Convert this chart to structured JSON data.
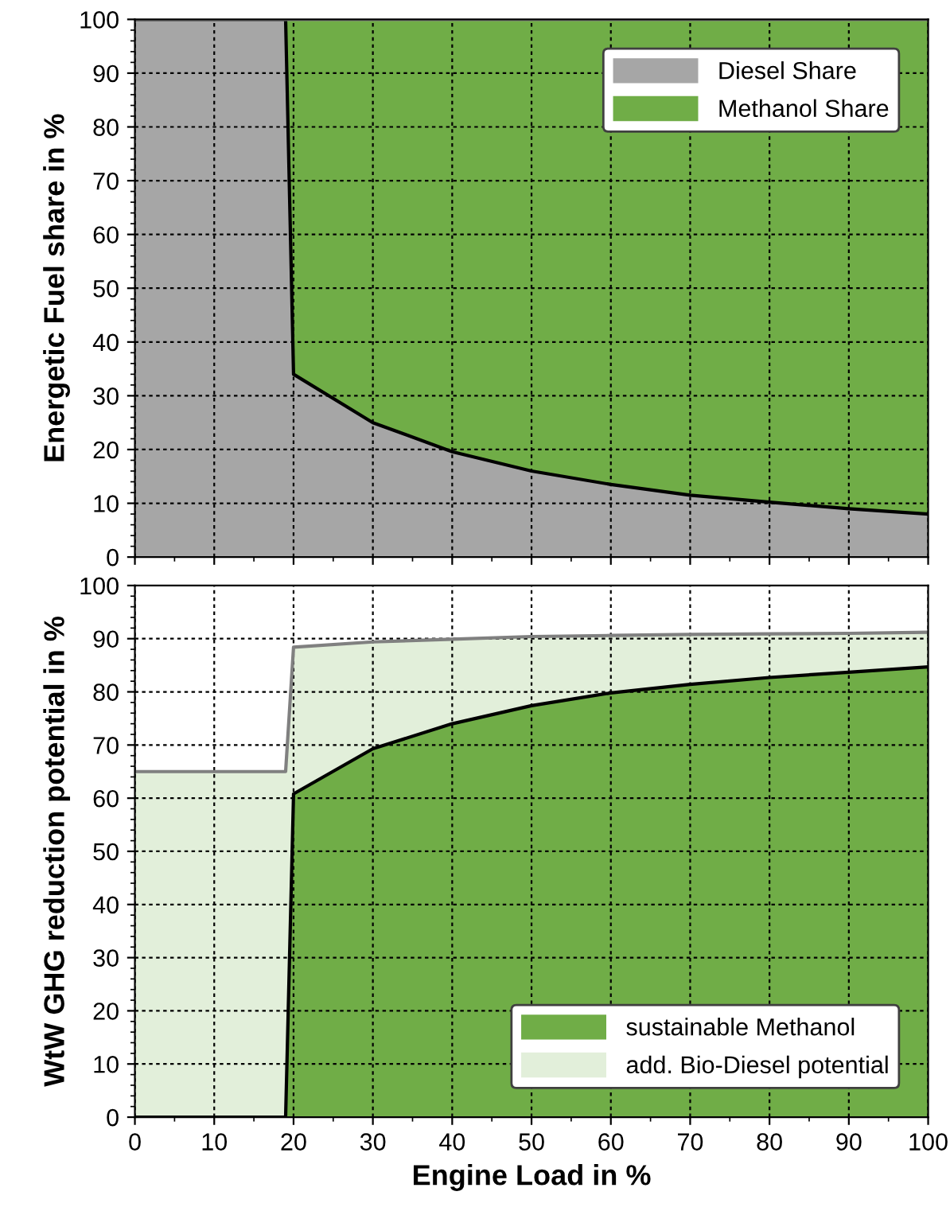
{
  "chart_data": [
    {
      "type": "area",
      "stacked": true,
      "ylabel": "Energetic Fuel share in %",
      "x": [
        0,
        10,
        19,
        20,
        30,
        40,
        50,
        60,
        70,
        80,
        90,
        100
      ],
      "series": [
        {
          "name": "Diesel Share",
          "color": "#a6a6a6",
          "values": [
            100,
            100,
            100,
            34,
            25,
            19.6,
            16,
            13.5,
            11.5,
            10.2,
            9,
            8
          ]
        },
        {
          "name": "Methanol Share",
          "color": "#70ad47",
          "values": [
            0,
            0,
            0,
            66,
            75,
            80.4,
            84,
            86.5,
            88.5,
            89.8,
            91,
            92
          ]
        }
      ],
      "xlim": [
        0,
        100
      ],
      "xticks": [
        0,
        10,
        20,
        30,
        40,
        50,
        60,
        70,
        80,
        90,
        100
      ],
      "ylim": [
        0,
        100
      ],
      "yticks": [
        0,
        10,
        20,
        30,
        40,
        50,
        60,
        70,
        80,
        90,
        100
      ],
      "grid": true,
      "legend": "top right",
      "tick_labels": "y"
    },
    {
      "type": "area",
      "stacked": true,
      "xlabel": "Engine Load in %",
      "ylabel": "WtW GHG reduction potential in %",
      "x": [
        0,
        10,
        19,
        20,
        30,
        40,
        50,
        60,
        70,
        80,
        90,
        100
      ],
      "series": [
        {
          "name": "sustainable Methanol",
          "color": "#70ad47",
          "values": [
            0,
            0,
            0,
            60.8,
            69.3,
            74,
            77.4,
            79.8,
            81.4,
            82.7,
            83.7,
            84.7
          ]
        },
        {
          "name": "add. Bio-Diesel potential",
          "color": "#e2efda",
          "values": [
            65,
            65,
            65,
            27.6,
            20.1,
            15.9,
            13,
            10.8,
            9.4,
            8.2,
            7.3,
            6.5
          ]
        }
      ],
      "xlim": [
        0,
        100
      ],
      "xticks": [
        0,
        10,
        20,
        30,
        40,
        50,
        60,
        70,
        80,
        90,
        100
      ],
      "ylim": [
        0,
        100
      ],
      "yticks": [
        0,
        10,
        20,
        30,
        40,
        50,
        60,
        70,
        80,
        90,
        100
      ],
      "grid": true,
      "legend": "bottom right"
    }
  ]
}
